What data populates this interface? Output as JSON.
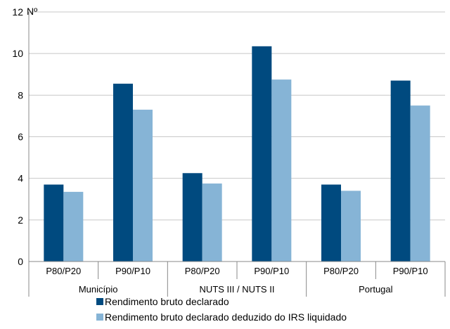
{
  "chart_data": {
    "type": "bar",
    "unit_label": "Nº",
    "ylim": [
      0,
      12
    ],
    "yticks": [
      0,
      2,
      4,
      6,
      8,
      10,
      12
    ],
    "grid": true,
    "legend_position": "bottom",
    "groups": [
      {
        "label": "Município",
        "categories": [
          "P80/P20",
          "P90/P10"
        ]
      },
      {
        "label": "NUTS III / NUTS II",
        "categories": [
          "P80/P20",
          "P90/P10"
        ]
      },
      {
        "label": "Portugal",
        "categories": [
          "P80/P20",
          "P90/P10"
        ]
      }
    ],
    "series": [
      {
        "name": "Rendimento bruto declarado",
        "color": "#004A7F",
        "values": [
          3.7,
          8.55,
          4.25,
          10.35,
          3.7,
          8.7
        ]
      },
      {
        "name": "Rendimento bruto declarado deduzido do IRS liquidado",
        "color": "#86B4D6",
        "values": [
          3.35,
          7.3,
          3.75,
          8.75,
          3.4,
          7.5
        ]
      }
    ]
  }
}
